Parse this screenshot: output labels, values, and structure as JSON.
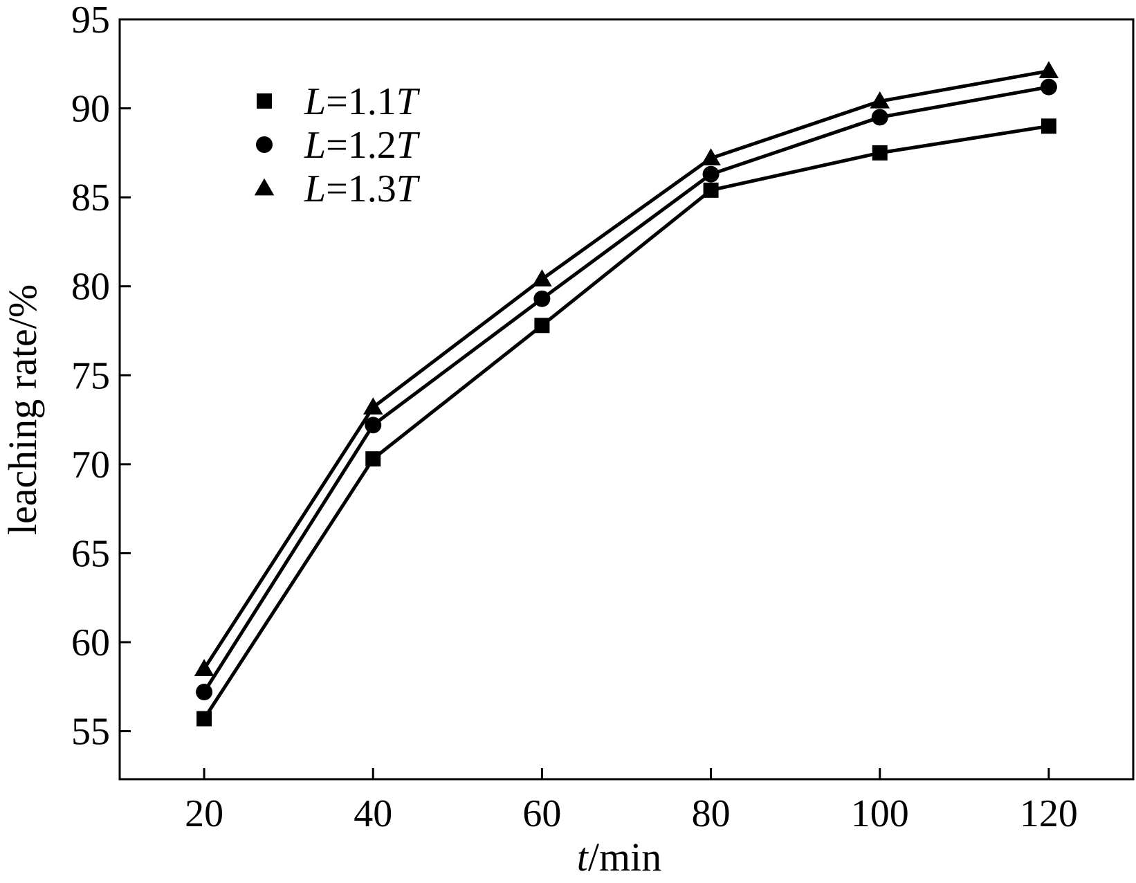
{
  "chart_data": {
    "type": "line",
    "title": "",
    "x": [
      20,
      40,
      60,
      80,
      100,
      120
    ],
    "x_ticks": [
      20,
      40,
      60,
      80,
      100,
      120
    ],
    "xlim": [
      10,
      130
    ],
    "xlabel": {
      "var": "t",
      "unit": "/min"
    },
    "ylabel": "leaching rate/%",
    "y_ticks": [
      55,
      60,
      65,
      70,
      75,
      80,
      85,
      90,
      95
    ],
    "ylim": [
      52.3,
      95
    ],
    "grid": false,
    "legend_position": "top-left",
    "line_color": "#000000",
    "series": [
      {
        "name": {
          "var": "L",
          "rest": "=1.1",
          "tail": "T"
        },
        "marker": "square",
        "values": [
          55.7,
          70.3,
          77.8,
          85.4,
          87.5,
          89.0
        ]
      },
      {
        "name": {
          "var": "L",
          "rest": "=1.2",
          "tail": "T"
        },
        "marker": "circle",
        "values": [
          57.2,
          72.2,
          79.3,
          86.3,
          89.5,
          91.2
        ]
      },
      {
        "name": {
          "var": "L",
          "rest": "=1.3",
          "tail": "T"
        },
        "marker": "triangle",
        "values": [
          58.5,
          73.2,
          80.4,
          87.2,
          90.4,
          92.1
        ]
      }
    ]
  }
}
